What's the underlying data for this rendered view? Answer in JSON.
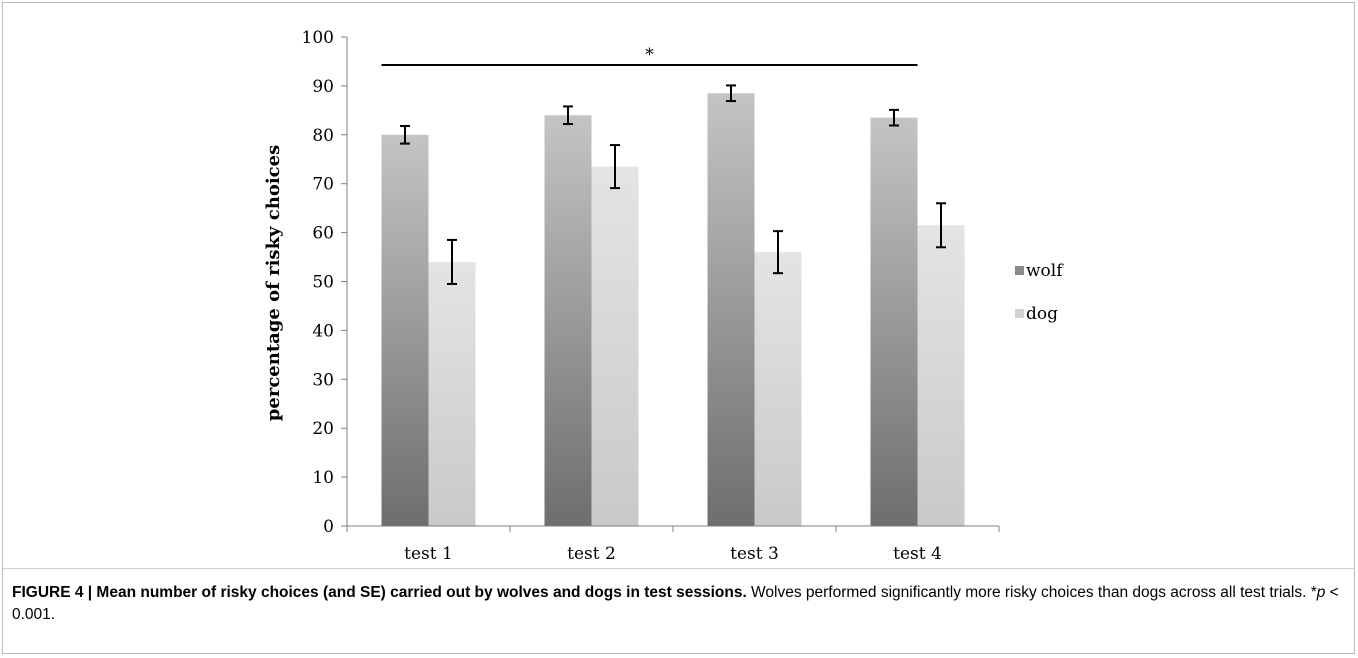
{
  "chart_data": {
    "type": "bar",
    "categories": [
      "test 1",
      "test 2",
      "test 3",
      "test 4"
    ],
    "series": [
      {
        "name": "wolf",
        "values": [
          80,
          84,
          88.5,
          83.5
        ],
        "error": [
          1.8,
          1.8,
          1.6,
          1.6
        ],
        "color": "#8a8a8a"
      },
      {
        "name": "dog",
        "values": [
          54,
          73.5,
          56,
          61.5
        ],
        "error": [
          4.5,
          4.4,
          4.3,
          4.5
        ],
        "color": "#d2d2d2"
      }
    ],
    "ylabel": "percentage of risky choices",
    "xlabel": "",
    "ylim": [
      0,
      100
    ],
    "yticks": [
      0,
      10,
      20,
      30,
      40,
      50,
      60,
      70,
      80,
      90,
      100
    ],
    "grid": false,
    "legend_position": "right",
    "significance": {
      "label": "*",
      "spans": [
        "test 1",
        "test 4"
      ]
    }
  },
  "caption": {
    "label": "FIGURE 4 | Mean number of risky choices (and SE) carried out by wolves and dogs in test sessions.",
    "text": " Wolves performed significantly more risky choices than dogs across all test trials. *",
    "p_symbol": "p",
    "p_value": " < 0.001."
  }
}
